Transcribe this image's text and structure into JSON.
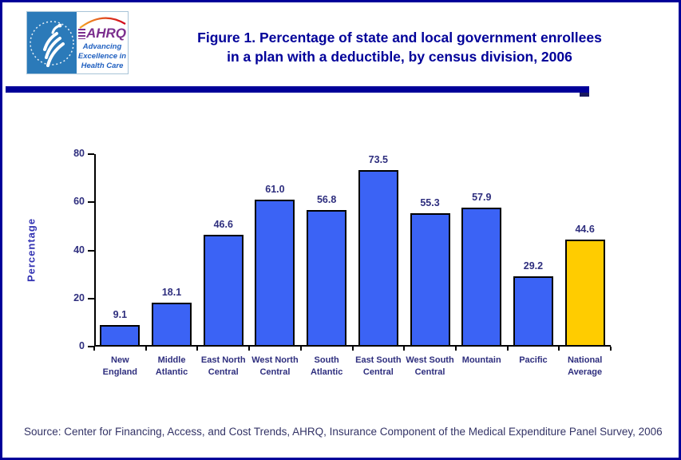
{
  "header": {
    "title_line1": "Figure 1. Percentage of state and local government enrollees",
    "title_line2": "in a plan with a deductible, by census division, 2006",
    "ahrq_logo": {
      "acronym": "AHRQ",
      "tagline_line1": "Advancing",
      "tagline_line2": "Excellence in",
      "tagline_line3": "Health Care"
    }
  },
  "footer": {
    "source": "Source: Center for Financing, Access, and Cost Trends, AHRQ, Insurance Component of the Medical Expenditure Panel Survey, 2006"
  },
  "colors": {
    "accent_navy": "#000099",
    "bar_blue": "#3b63f5",
    "bar_gold": "#ffcc00",
    "bar_border": "#000000",
    "label_navy": "#2e2e7e",
    "ylabel_blue": "#3333b3",
    "hhs_blue": "#2b7ab9",
    "ahrq_purple": "#7b2e8e",
    "tagline_blue": "#2060c0",
    "source_navy": "#333366"
  },
  "chart_data": {
    "type": "bar",
    "title": "Figure 1. Percentage of state and local government enrollees in a plan with a deductible, by census division, 2006",
    "categories": [
      "New England",
      "Middle Atlantic",
      "East North Central",
      "West North Central",
      "South Atlantic",
      "East South Central",
      "West South Central",
      "Mountain",
      "Pacific",
      "National Average"
    ],
    "category_label_lines": [
      [
        "New",
        "England"
      ],
      [
        "Middle",
        "Atlantic"
      ],
      [
        "East North",
        "Central"
      ],
      [
        "West North",
        "Central"
      ],
      [
        "South",
        "Atlantic"
      ],
      [
        "East South",
        "Central"
      ],
      [
        "West South",
        "Central"
      ],
      [
        "Mountain"
      ],
      [
        "Pacific"
      ],
      [
        "National",
        "Average"
      ]
    ],
    "values": [
      9.1,
      18.1,
      46.6,
      61.0,
      56.8,
      73.5,
      55.3,
      57.9,
      29.2,
      44.6
    ],
    "value_labels": [
      "9.1",
      "18.1",
      "46.6",
      "61.0",
      "56.8",
      "73.5",
      "55.3",
      "57.9",
      "29.2",
      "44.6"
    ],
    "highlight_index": 9,
    "xlabel": "",
    "ylabel": "Percentage",
    "ylim": [
      0,
      80
    ],
    "yticks": [
      0,
      20,
      40,
      60,
      80
    ],
    "grid": false,
    "legend": false,
    "bar_color": "#3b63f5",
    "highlight_color": "#ffcc00"
  }
}
